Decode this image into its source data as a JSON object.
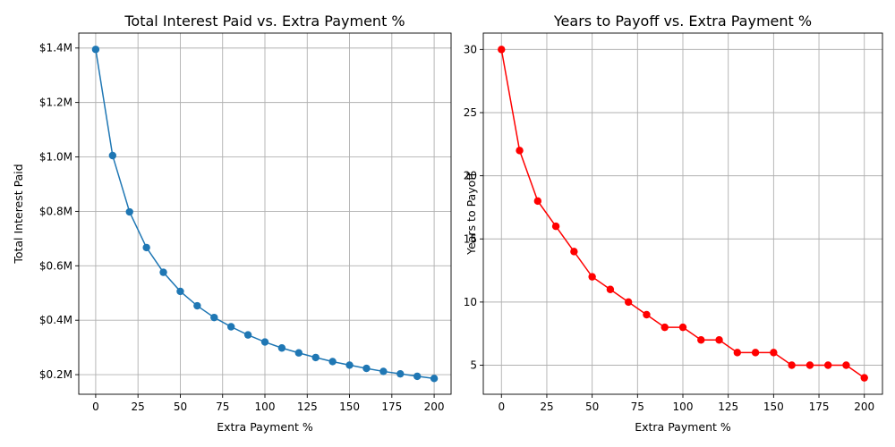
{
  "chart_data": [
    {
      "type": "line",
      "title": "Total Interest Paid vs. Extra Payment %",
      "xlabel": "Extra Payment %",
      "ylabel": "Total Interest Paid",
      "xlim": [
        -10,
        210
      ],
      "ylim": [
        0.128,
        1.455
      ],
      "xticks": [
        0,
        25,
        50,
        75,
        100,
        125,
        150,
        175,
        200
      ],
      "yticks": [
        0.2,
        0.4,
        0.6,
        0.8,
        1.0,
        1.2,
        1.4
      ],
      "ytick_labels": [
        "$0.2M",
        "$0.4M",
        "$0.6M",
        "$0.8M",
        "$1.0M",
        "$1.2M",
        "$1.4M"
      ],
      "grid": true,
      "color": "#1f77b4",
      "marker": "circle",
      "series": [
        {
          "x": [
            0,
            10,
            20,
            30,
            40,
            50,
            60,
            70,
            80,
            90,
            100,
            110,
            120,
            130,
            140,
            150,
            160,
            170,
            180,
            190,
            200
          ],
          "values": [
            1.395,
            1.005,
            0.798,
            0.667,
            0.576,
            0.506,
            0.453,
            0.41,
            0.376,
            0.346,
            0.32,
            0.298,
            0.28,
            0.263,
            0.248,
            0.235,
            0.223,
            0.212,
            0.203,
            0.194,
            0.186
          ]
        }
      ]
    },
    {
      "type": "line",
      "title": "Years to Payoff vs. Extra Payment %",
      "xlabel": "Extra Payment %",
      "ylabel": "Years to Payoff",
      "xlim": [
        -10,
        210
      ],
      "ylim": [
        2.7,
        31.3
      ],
      "xticks": [
        0,
        25,
        50,
        75,
        100,
        125,
        150,
        175,
        200
      ],
      "yticks": [
        5,
        10,
        15,
        20,
        25,
        30
      ],
      "ytick_labels": [
        "5",
        "10",
        "15",
        "20",
        "25",
        "30"
      ],
      "grid": true,
      "color": "#ff0000",
      "marker": "circle",
      "series": [
        {
          "x": [
            0,
            10,
            20,
            30,
            40,
            50,
            60,
            70,
            80,
            90,
            100,
            110,
            120,
            130,
            140,
            150,
            160,
            170,
            180,
            190,
            200
          ],
          "values": [
            30,
            22,
            18,
            16,
            14,
            12,
            11,
            10,
            9,
            8,
            8,
            7,
            7,
            6,
            6,
            6,
            5,
            5,
            5,
            5,
            4
          ]
        }
      ]
    }
  ]
}
